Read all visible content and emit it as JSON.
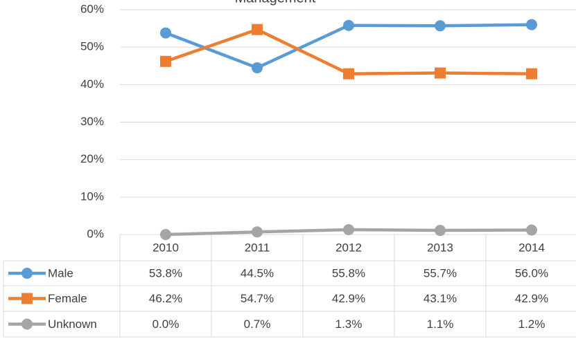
{
  "chart_data": {
    "type": "line",
    "title": "Management",
    "categories": [
      "2010",
      "2011",
      "2012",
      "2013",
      "2014"
    ],
    "series": [
      {
        "name": "Male",
        "color": "#5b9bd5",
        "marker": "circle",
        "values": [
          53.8,
          44.5,
          55.8,
          55.7,
          56.0
        ],
        "value_labels": [
          "53.8%",
          "44.5%",
          "55.8%",
          "55.7%",
          "56.0%"
        ]
      },
      {
        "name": "Female",
        "color": "#ed7d31",
        "marker": "square",
        "values": [
          46.2,
          54.7,
          42.9,
          43.1,
          42.9
        ],
        "value_labels": [
          "46.2%",
          "54.7%",
          "42.9%",
          "43.1%",
          "42.9%"
        ]
      },
      {
        "name": "Unknown",
        "color": "#a5a5a5",
        "marker": "circle",
        "values": [
          0.0,
          0.7,
          1.3,
          1.1,
          1.2
        ],
        "value_labels": [
          "0.0%",
          "0.7%",
          "1.3%",
          "1.1%",
          "1.2%"
        ]
      }
    ],
    "ylim": [
      0,
      60
    ],
    "yticks": [
      {
        "value": 0,
        "label": "0%"
      },
      {
        "value": 10,
        "label": "10%"
      },
      {
        "value": 20,
        "label": "20%"
      },
      {
        "value": 30,
        "label": "30%"
      },
      {
        "value": 40,
        "label": "40%"
      },
      {
        "value": 50,
        "label": "50%"
      },
      {
        "value": 60,
        "label": "60%"
      }
    ],
    "grid": true,
    "data_table": true
  }
}
